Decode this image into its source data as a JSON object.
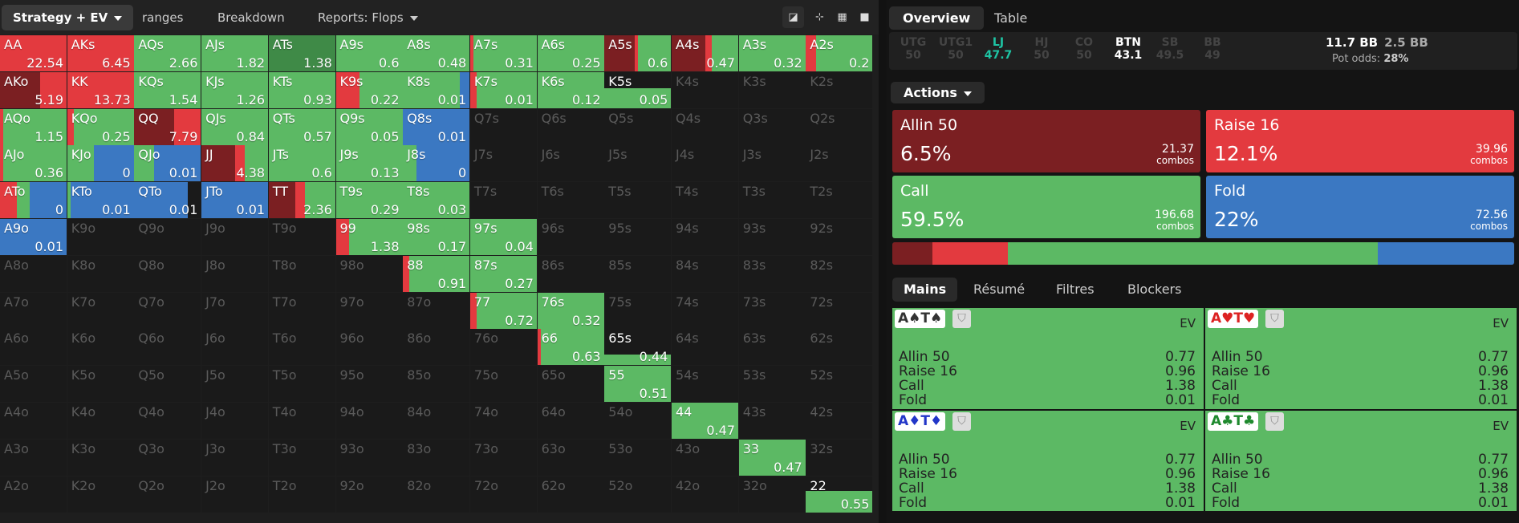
{
  "left_tabs": {
    "strategy_ev": "Strategy + EV",
    "ranges": "ranges",
    "breakdown": "Breakdown",
    "reports": "Reports: Flops"
  },
  "right_tabs": {
    "overview": "Overview",
    "table": "Table"
  },
  "positions": [
    {
      "name": "UTG",
      "value": "50"
    },
    {
      "name": "UTG1",
      "value": "50"
    },
    {
      "name": "LJ",
      "value": "47.7"
    },
    {
      "name": "HJ",
      "value": "50"
    },
    {
      "name": "CO",
      "value": "50"
    },
    {
      "name": "BTN",
      "value": "43.1"
    },
    {
      "name": "SB",
      "value": "49.5"
    },
    {
      "name": "BB",
      "value": "49"
    }
  ],
  "stack": {
    "bb": "11.7 BB",
    "pot": "2.5 BB",
    "pot_odds_label": "Pot odds:",
    "pot_odds": "28%"
  },
  "actions_label": "Actions",
  "actions": [
    {
      "label": "Allin 50",
      "pct": "6.5%",
      "combos": "21.37",
      "unit": "combos",
      "color": "#7b1f22"
    },
    {
      "label": "Raise 16",
      "pct": "12.1%",
      "combos": "39.96",
      "unit": "combos",
      "color": "#e33a3f"
    },
    {
      "label": "Call",
      "pct": "59.5%",
      "combos": "196.68",
      "unit": "combos",
      "color": "#5cb964"
    },
    {
      "label": "Fold",
      "pct": "22%",
      "combos": "72.56",
      "unit": "combos",
      "color": "#3b78c2"
    }
  ],
  "bottom_tabs": {
    "mains": "Mains",
    "resume": "Résumé",
    "filtres": "Filtres",
    "blockers": "Blockers"
  },
  "hand_cards": [
    {
      "cards": "A♠T♠",
      "card_color": "#333",
      "ev": "EV",
      "rows": [
        [
          "Allin 50",
          "0.77"
        ],
        [
          "Raise 16",
          "0.96"
        ],
        [
          "Call",
          "1.38"
        ],
        [
          "Fold",
          "0.01"
        ]
      ]
    },
    {
      "cards": "A♥T♥",
      "card_color": "#d22",
      "ev": "EV",
      "rows": [
        [
          "Allin 50",
          "0.77"
        ],
        [
          "Raise 16",
          "0.96"
        ],
        [
          "Call",
          "1.38"
        ],
        [
          "Fold",
          "0.01"
        ]
      ]
    },
    {
      "cards": "A♦T♦",
      "card_color": "#2236c8",
      "ev": "EV",
      "rows": [
        [
          "Allin 50",
          "0.77"
        ],
        [
          "Raise 16",
          "0.96"
        ],
        [
          "Call",
          "1.38"
        ],
        [
          "Fold",
          "0.01"
        ]
      ]
    },
    {
      "cards": "A♣T♣",
      "card_color": "#1f8a2e",
      "ev": "EV",
      "rows": [
        [
          "Allin 50",
          "0.77"
        ],
        [
          "Raise 16",
          "0.96"
        ],
        [
          "Call",
          "1.38"
        ],
        [
          "Fold",
          "0.01"
        ]
      ]
    }
  ],
  "colors": {
    "allin": "#7b1f22",
    "raise": "#e33a3f",
    "call": "#5cb964",
    "fold": "#3b78c2",
    "empty": "#1a1a1a"
  },
  "grid": [
    [
      {
        "h": "AA",
        "ev": "22.54",
        "f": [
          0,
          1,
          0,
          0
        ]
      },
      {
        "h": "AKs",
        "ev": "6.45",
        "f": [
          0,
          1,
          0,
          0
        ]
      },
      {
        "h": "AQs",
        "ev": "2.66",
        "f": [
          0,
          0,
          1,
          0
        ]
      },
      {
        "h": "AJs",
        "ev": "1.82",
        "f": [
          0,
          0,
          1,
          0
        ]
      },
      {
        "h": "ATs",
        "ev": "1.38",
        "f": [
          0,
          0,
          1,
          0
        ],
        "dark": true
      },
      {
        "h": "A9s",
        "ev": "0.6",
        "f": [
          0,
          0,
          1,
          0
        ]
      },
      {
        "h": "A8s",
        "ev": "0.48",
        "f": [
          0,
          0,
          1,
          0
        ]
      },
      {
        "h": "A7s",
        "ev": "0.31",
        "f": [
          0,
          0.05,
          0.95,
          0
        ]
      },
      {
        "h": "A6s",
        "ev": "0.25",
        "f": [
          0,
          0,
          1,
          0
        ]
      },
      {
        "h": "A5s",
        "ev": "0.6",
        "f": [
          0.45,
          0.05,
          0.5,
          0
        ]
      },
      {
        "h": "A4s",
        "ev": "0.47",
        "f": [
          0.5,
          0.1,
          0.4,
          0
        ]
      },
      {
        "h": "A3s",
        "ev": "0.32",
        "f": [
          0,
          0,
          1,
          0
        ]
      },
      {
        "h": "A2s",
        "ev": "0.2",
        "f": [
          0,
          0.15,
          0.85,
          0
        ]
      }
    ],
    [
      {
        "h": "AKo",
        "ev": "5.19",
        "f": [
          0.6,
          0.4,
          0,
          0
        ]
      },
      {
        "h": "KK",
        "ev": "13.73",
        "f": [
          0,
          1,
          0,
          0
        ]
      },
      {
        "h": "KQs",
        "ev": "1.54",
        "f": [
          0,
          0,
          1,
          0
        ]
      },
      {
        "h": "KJs",
        "ev": "1.26",
        "f": [
          0,
          0,
          1,
          0
        ]
      },
      {
        "h": "KTs",
        "ev": "0.93",
        "f": [
          0,
          0,
          1,
          0
        ]
      },
      {
        "h": "K9s",
        "ev": "0.22",
        "f": [
          0,
          0.35,
          0.65,
          0
        ]
      },
      {
        "h": "K8s",
        "ev": "0.01",
        "f": [
          0,
          0,
          0.85,
          0.15
        ]
      },
      {
        "h": "K7s",
        "ev": "0.01",
        "f": [
          0,
          0.1,
          0.9,
          0
        ]
      },
      {
        "h": "K6s",
        "ev": "0.12",
        "f": [
          0,
          0,
          1,
          0
        ]
      },
      {
        "h": "K5s",
        "ev": "0.05",
        "f": [
          0,
          0,
          1,
          0
        ],
        "partial": 0.55
      },
      {
        "h": "K4s",
        "ev": null
      },
      {
        "h": "K3s",
        "ev": null
      },
      {
        "h": "K2s",
        "ev": null
      }
    ],
    [
      {
        "h": "AQo",
        "ev": "1.15",
        "f": [
          0,
          0.05,
          0.95,
          0
        ]
      },
      {
        "h": "KQo",
        "ev": "0.25",
        "f": [
          0,
          0.1,
          0.9,
          0
        ]
      },
      {
        "h": "QQ",
        "ev": "7.79",
        "f": [
          0.6,
          0.4,
          0,
          0
        ]
      },
      {
        "h": "QJs",
        "ev": "0.84",
        "f": [
          0,
          0,
          1,
          0
        ]
      },
      {
        "h": "QTs",
        "ev": "0.57",
        "f": [
          0,
          0,
          1,
          0
        ]
      },
      {
        "h": "Q9s",
        "ev": "0.05",
        "f": [
          0,
          0,
          1,
          0
        ]
      },
      {
        "h": "Q8s",
        "ev": "0.01",
        "f": [
          0,
          0,
          0,
          1
        ]
      },
      {
        "h": "Q7s",
        "ev": null
      },
      {
        "h": "Q6s",
        "ev": null
      },
      {
        "h": "Q5s",
        "ev": null
      },
      {
        "h": "Q4s",
        "ev": null
      },
      {
        "h": "Q3s",
        "ev": null
      },
      {
        "h": "Q2s",
        "ev": null
      }
    ],
    [
      {
        "h": "AJo",
        "ev": "0.36",
        "f": [
          0,
          0.05,
          0.95,
          0
        ]
      },
      {
        "h": "KJo",
        "ev": "0",
        "f": [
          0,
          0,
          0.4,
          0.6
        ]
      },
      {
        "h": "QJo",
        "ev": "0.01",
        "f": [
          0,
          0,
          0.3,
          0.7
        ]
      },
      {
        "h": "JJ",
        "ev": "4.38",
        "f": [
          0.5,
          0.15,
          0.35,
          0
        ]
      },
      {
        "h": "JTs",
        "ev": "0.6",
        "f": [
          0,
          0,
          1,
          0
        ]
      },
      {
        "h": "J9s",
        "ev": "0.13",
        "f": [
          0,
          0,
          1,
          0
        ]
      },
      {
        "h": "J8s",
        "ev": "0",
        "f": [
          0,
          0,
          0.2,
          0.8
        ]
      },
      {
        "h": "J7s",
        "ev": null
      },
      {
        "h": "J6s",
        "ev": null
      },
      {
        "h": "J5s",
        "ev": null
      },
      {
        "h": "J4s",
        "ev": null
      },
      {
        "h": "J3s",
        "ev": null
      },
      {
        "h": "J2s",
        "ev": null
      }
    ],
    [
      {
        "h": "ATo",
        "ev": "0",
        "f": [
          0,
          0.25,
          0.2,
          0.55
        ]
      },
      {
        "h": "KTo",
        "ev": "0.01",
        "f": [
          0,
          0,
          0.05,
          0.95
        ]
      },
      {
        "h": "QTo",
        "ev": "0.01",
        "f": [
          0,
          0,
          0,
          0.8
        ]
      },
      {
        "h": "JTo",
        "ev": "0.01",
        "f": [
          0,
          0,
          0,
          1
        ]
      },
      {
        "h": "TT",
        "ev": "2.36",
        "f": [
          0.4,
          0.15,
          0.45,
          0
        ]
      },
      {
        "h": "T9s",
        "ev": "0.29",
        "f": [
          0,
          0,
          1,
          0
        ]
      },
      {
        "h": "T8s",
        "ev": "0.03",
        "f": [
          0,
          0,
          1,
          0
        ]
      },
      {
        "h": "T7s",
        "ev": null
      },
      {
        "h": "T6s",
        "ev": null
      },
      {
        "h": "T5s",
        "ev": null
      },
      {
        "h": "T4s",
        "ev": null
      },
      {
        "h": "T3s",
        "ev": null
      },
      {
        "h": "T2s",
        "ev": null
      }
    ],
    [
      {
        "h": "A9o",
        "ev": "0.01",
        "f": [
          0,
          0,
          0,
          1
        ]
      },
      {
        "h": "K9o",
        "ev": null
      },
      {
        "h": "Q9o",
        "ev": null
      },
      {
        "h": "J9o",
        "ev": null
      },
      {
        "h": "T9o",
        "ev": null
      },
      {
        "h": "99",
        "ev": "1.38",
        "f": [
          0,
          0.2,
          0.8,
          0
        ]
      },
      {
        "h": "98s",
        "ev": "0.17",
        "f": [
          0,
          0,
          1,
          0
        ]
      },
      {
        "h": "97s",
        "ev": "0.04",
        "f": [
          0,
          0,
          1,
          0
        ]
      },
      {
        "h": "96s",
        "ev": null
      },
      {
        "h": "95s",
        "ev": null
      },
      {
        "h": "94s",
        "ev": null
      },
      {
        "h": "93s",
        "ev": null
      },
      {
        "h": "92s",
        "ev": null
      }
    ],
    [
      {
        "h": "A8o",
        "ev": null
      },
      {
        "h": "K8o",
        "ev": null
      },
      {
        "h": "Q8o",
        "ev": null
      },
      {
        "h": "J8o",
        "ev": null
      },
      {
        "h": "T8o",
        "ev": null
      },
      {
        "h": "98o",
        "ev": null
      },
      {
        "h": "88",
        "ev": "0.91",
        "f": [
          0,
          0.1,
          0.9,
          0
        ]
      },
      {
        "h": "87s",
        "ev": "0.27",
        "f": [
          0,
          0,
          1,
          0
        ]
      },
      {
        "h": "86s",
        "ev": null
      },
      {
        "h": "85s",
        "ev": null
      },
      {
        "h": "84s",
        "ev": null
      },
      {
        "h": "83s",
        "ev": null
      },
      {
        "h": "82s",
        "ev": null
      }
    ],
    [
      {
        "h": "A7o",
        "ev": null
      },
      {
        "h": "K7o",
        "ev": null
      },
      {
        "h": "Q7o",
        "ev": null
      },
      {
        "h": "J7o",
        "ev": null
      },
      {
        "h": "T7o",
        "ev": null
      },
      {
        "h": "97o",
        "ev": null
      },
      {
        "h": "87o",
        "ev": null
      },
      {
        "h": "77",
        "ev": "0.72",
        "f": [
          0,
          0.1,
          0.9,
          0
        ]
      },
      {
        "h": "76s",
        "ev": "0.32",
        "f": [
          0,
          0,
          1,
          0
        ]
      },
      {
        "h": "75s",
        "ev": null
      },
      {
        "h": "74s",
        "ev": null
      },
      {
        "h": "73s",
        "ev": null
      },
      {
        "h": "72s",
        "ev": null
      }
    ],
    [
      {
        "h": "A6o",
        "ev": null
      },
      {
        "h": "K6o",
        "ev": null
      },
      {
        "h": "Q6o",
        "ev": null
      },
      {
        "h": "J6o",
        "ev": null
      },
      {
        "h": "T6o",
        "ev": null
      },
      {
        "h": "96o",
        "ev": null
      },
      {
        "h": "86o",
        "ev": null
      },
      {
        "h": "76o",
        "ev": null
      },
      {
        "h": "66",
        "ev": "0.63",
        "f": [
          0,
          0.05,
          0.95,
          0
        ]
      },
      {
        "h": "65s",
        "ev": "0.44",
        "f": [
          0,
          0,
          1,
          0
        ],
        "partial": 0.3
      },
      {
        "h": "64s",
        "ev": null
      },
      {
        "h": "63s",
        "ev": null
      },
      {
        "h": "62s",
        "ev": null
      }
    ],
    [
      {
        "h": "A5o",
        "ev": null
      },
      {
        "h": "K5o",
        "ev": null
      },
      {
        "h": "Q5o",
        "ev": null
      },
      {
        "h": "J5o",
        "ev": null
      },
      {
        "h": "T5o",
        "ev": null
      },
      {
        "h": "95o",
        "ev": null
      },
      {
        "h": "85o",
        "ev": null
      },
      {
        "h": "75o",
        "ev": null
      },
      {
        "h": "65o",
        "ev": null
      },
      {
        "h": "55",
        "ev": "0.51",
        "f": [
          0,
          0,
          1,
          0
        ]
      },
      {
        "h": "54s",
        "ev": null
      },
      {
        "h": "53s",
        "ev": null
      },
      {
        "h": "52s",
        "ev": null
      }
    ],
    [
      {
        "h": "A4o",
        "ev": null
      },
      {
        "h": "K4o",
        "ev": null
      },
      {
        "h": "Q4o",
        "ev": null
      },
      {
        "h": "J4o",
        "ev": null
      },
      {
        "h": "T4o",
        "ev": null
      },
      {
        "h": "94o",
        "ev": null
      },
      {
        "h": "84o",
        "ev": null
      },
      {
        "h": "74o",
        "ev": null
      },
      {
        "h": "64o",
        "ev": null
      },
      {
        "h": "54o",
        "ev": null
      },
      {
        "h": "44",
        "ev": "0.47",
        "f": [
          0,
          0,
          1,
          0
        ]
      },
      {
        "h": "43s",
        "ev": null
      },
      {
        "h": "42s",
        "ev": null
      }
    ],
    [
      {
        "h": "A3o",
        "ev": null
      },
      {
        "h": "K3o",
        "ev": null
      },
      {
        "h": "Q3o",
        "ev": null
      },
      {
        "h": "J3o",
        "ev": null
      },
      {
        "h": "T3o",
        "ev": null
      },
      {
        "h": "93o",
        "ev": null
      },
      {
        "h": "83o",
        "ev": null
      },
      {
        "h": "73o",
        "ev": null
      },
      {
        "h": "63o",
        "ev": null
      },
      {
        "h": "53o",
        "ev": null
      },
      {
        "h": "43o",
        "ev": null
      },
      {
        "h": "33",
        "ev": "0.47",
        "f": [
          0,
          0,
          1,
          0
        ]
      },
      {
        "h": "32s",
        "ev": null
      }
    ],
    [
      {
        "h": "A2o",
        "ev": null
      },
      {
        "h": "K2o",
        "ev": null
      },
      {
        "h": "Q2o",
        "ev": null
      },
      {
        "h": "J2o",
        "ev": null
      },
      {
        "h": "T2o",
        "ev": null
      },
      {
        "h": "92o",
        "ev": null
      },
      {
        "h": "82o",
        "ev": null
      },
      {
        "h": "72o",
        "ev": null
      },
      {
        "h": "62o",
        "ev": null
      },
      {
        "h": "52o",
        "ev": null
      },
      {
        "h": "42o",
        "ev": null
      },
      {
        "h": "32o",
        "ev": null
      },
      {
        "h": "22",
        "ev": "0.55",
        "f": [
          0,
          0,
          1,
          0
        ],
        "partial": 0.6
      }
    ]
  ]
}
